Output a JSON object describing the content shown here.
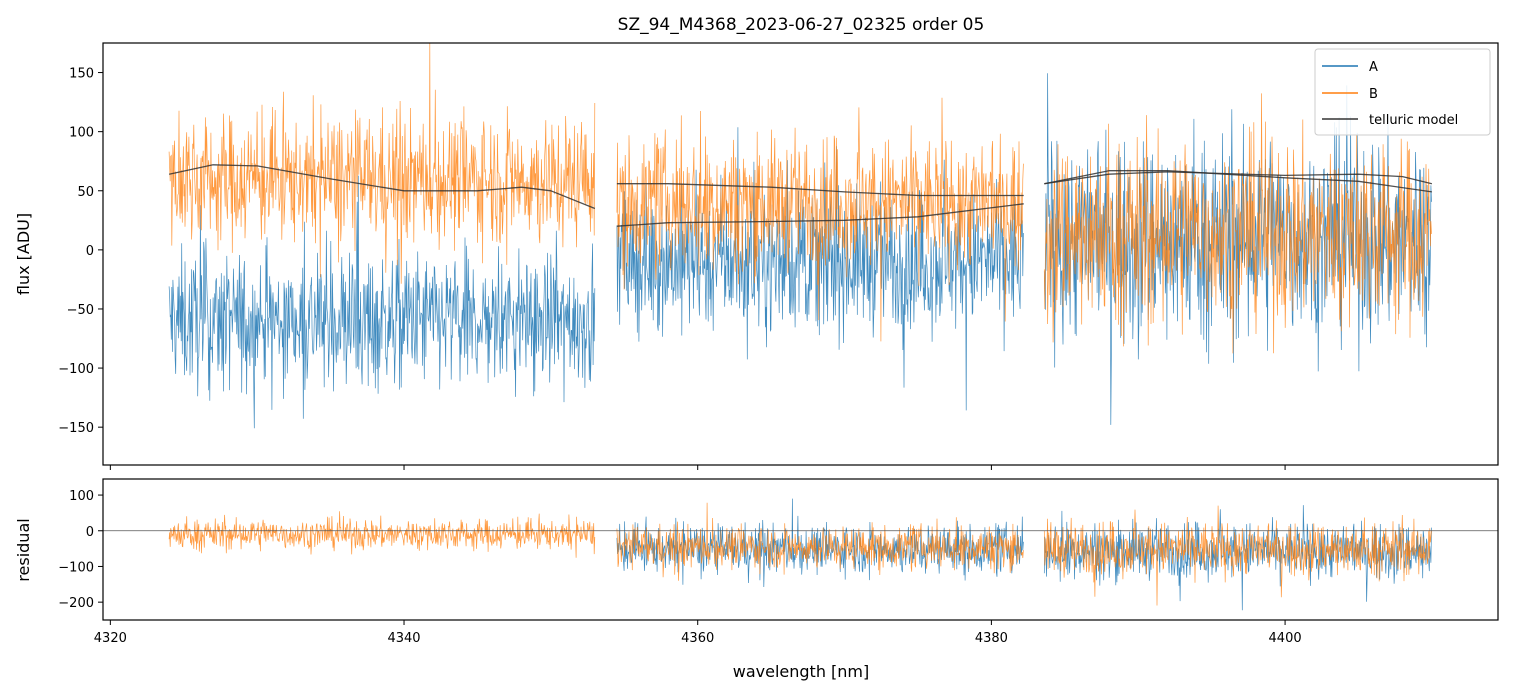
{
  "chart_data": {
    "type": "line",
    "title": "SZ_94_M4368_2023-06-27_02325  order 05",
    "xlabel": "wavelength [nm]",
    "xlim": [
      4319.5,
      4414.5
    ],
    "x_ticks": [
      "4320",
      "4340",
      "4360",
      "4380",
      "4400"
    ],
    "x_tick_values": [
      4320,
      4340,
      4360,
      4380,
      4400
    ],
    "segments": [
      [
        4324,
        4353
      ],
      [
        4354.5,
        4382.2
      ],
      [
        4383.6,
        4410
      ]
    ],
    "colors": {
      "A": "#1f77b4",
      "B": "#ff7f0e",
      "telluric": "#333333"
    },
    "panels": {
      "top": {
        "ylabel": "flux [ADU]",
        "ylim": [
          -182,
          175
        ],
        "y_ticks": [
          "150",
          "100",
          "50",
          "0",
          "−50",
          "−100",
          "−150"
        ],
        "y_tick_values": [
          150,
          100,
          50,
          0,
          -50,
          -100,
          -150
        ],
        "series": [
          {
            "name": "A",
            "level_by_segment": [
              -60,
              -10,
              10
            ],
            "noise_amplitude": [
              75,
              75,
              110
            ]
          },
          {
            "name": "B",
            "level_by_segment": [
              60,
              40,
              15
            ],
            "noise_amplitude": [
              70,
              70,
              100
            ]
          }
        ],
        "telluric_model": {
          "name": "telluric model",
          "curves": [
            {
              "x": [
                4324,
                4327,
                4330,
                4335,
                4340,
                4345,
                4348,
                4350,
                4353
              ],
              "y": [
                64,
                72,
                71,
                60,
                50,
                50,
                53,
                50,
                35
              ]
            },
            {
              "x": [
                4354.5,
                4358,
                4365,
                4370,
                4375,
                4382.2
              ],
              "y": [
                56,
                56,
                53,
                49,
                46,
                46
              ]
            },
            {
              "x": [
                4354.5,
                4358,
                4365,
                4370,
                4375,
                4382.2
              ],
              "y": [
                20,
                23,
                24,
                25,
                28,
                39
              ]
            },
            {
              "x": [
                4383.6,
                4388,
                4392,
                4400,
                4405,
                4408,
                4410
              ],
              "y": [
                56,
                64,
                66,
                63,
                64,
                62,
                56
              ]
            },
            {
              "x": [
                4383.6,
                4388,
                4392,
                4400,
                4405,
                4410
              ],
              "y": [
                56,
                67,
                67,
                61,
                58,
                49
              ]
            }
          ]
        },
        "legend": {
          "placement": "top-right",
          "entries": [
            "A",
            "B",
            "telluric model"
          ]
        }
      },
      "bottom": {
        "ylabel": "residual",
        "ylim": [
          -250,
          145
        ],
        "y_ticks": [
          "100",
          "0",
          "−100",
          "−200"
        ],
        "y_tick_values": [
          100,
          0,
          -100,
          -200
        ],
        "reference_line_y": 0,
        "series": [
          {
            "name": "A",
            "level_by_segment": [
              -10,
              -50,
              -55
            ],
            "noise_amplitude": [
              50,
              85,
              100
            ]
          },
          {
            "name": "B",
            "level_by_segment": [
              -10,
              -45,
              -50
            ],
            "noise_amplitude": [
              55,
              75,
              95
            ]
          }
        ]
      }
    }
  }
}
